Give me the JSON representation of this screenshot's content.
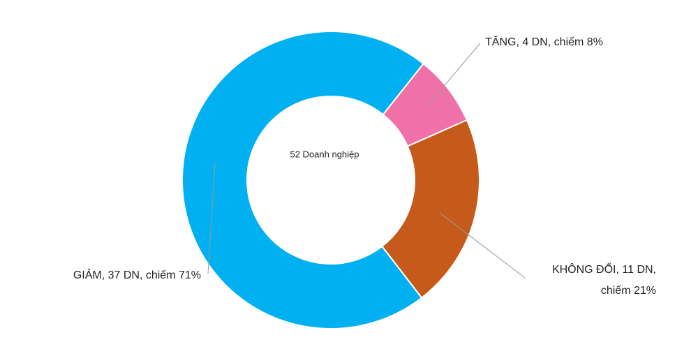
{
  "chart_data": {
    "type": "donut",
    "center_label": "52 Doanh nghiệp",
    "values": [
      4,
      11,
      37
    ],
    "value_labels": [
      "TĂNG, 4 DN, chiếm 8%",
      "KHÔNG ĐỔI, 11 DN,\nchiếm 21%",
      "GIẢM, 37 DN, chiếm 71%"
    ],
    "colors": [
      "#f070a8",
      "#c55a1a",
      "#00b0f0"
    ]
  }
}
